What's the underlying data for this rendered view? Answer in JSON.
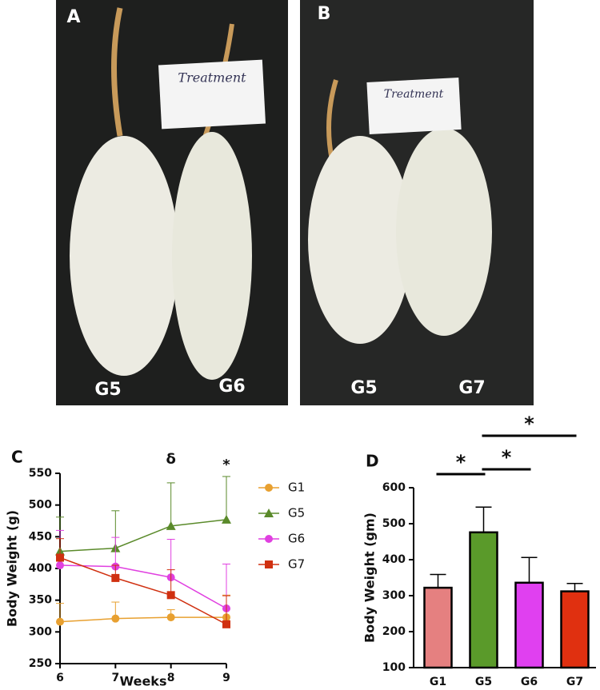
{
  "photos": [
    {
      "panel": "A",
      "labels": [
        "G5",
        "G6"
      ],
      "card": "Treatment"
    },
    {
      "panel": "B",
      "labels": [
        "G5",
        "G7"
      ],
      "card": "Treatment"
    }
  ],
  "chart_data": [
    {
      "type": "line",
      "panel": "C",
      "xlabel": "Weeks",
      "ylabel": "Body Weight (g)",
      "x": [
        6,
        7,
        8,
        9
      ],
      "xlim": [
        6,
        9
      ],
      "xticks": [
        6,
        7,
        8,
        9
      ],
      "ylim": [
        250,
        550
      ],
      "yticks": [
        250,
        300,
        350,
        400,
        450,
        500,
        550
      ],
      "series": [
        {
          "name": "G1",
          "color": "#e8a030",
          "marker": "circle",
          "values": [
            316,
            321,
            323,
            323
          ],
          "errors": [
            29,
            26,
            12,
            35
          ]
        },
        {
          "name": "G5",
          "color": "#5a8a2a",
          "marker": "triangle",
          "values": [
            427,
            432,
            467,
            477
          ],
          "errors": [
            54,
            59,
            68,
            68
          ]
        },
        {
          "name": "G6",
          "color": "#e040e0",
          "marker": "circle",
          "values": [
            405,
            403,
            386,
            337
          ],
          "errors": [
            55,
            46,
            60,
            70
          ]
        },
        {
          "name": "G7",
          "color": "#d03010",
          "marker": "square",
          "values": [
            417,
            385,
            358,
            312
          ],
          "errors": [
            30,
            20,
            40,
            45
          ]
        }
      ],
      "annotations": [
        {
          "text": "δ",
          "x": 8
        },
        {
          "text": "*",
          "x": 9
        }
      ]
    },
    {
      "type": "bar",
      "panel": "D",
      "ylabel": "Body Weight (gm)",
      "categories": [
        "G1",
        "G5",
        "G6",
        "G7"
      ],
      "values": [
        322,
        476,
        336,
        312
      ],
      "errors": [
        37,
        70,
        70,
        22
      ],
      "colors": [
        "#e58080",
        "#5a9a2a",
        "#e040f0",
        "#e03010"
      ],
      "ylim": [
        100,
        600
      ],
      "yticks": [
        100,
        200,
        300,
        400,
        500,
        600
      ],
      "significance": [
        {
          "from": 0,
          "to": 1,
          "label": "*"
        },
        {
          "from": 1,
          "to": 2,
          "label": "*"
        },
        {
          "from": 1,
          "to": 3,
          "label": "*"
        }
      ]
    }
  ]
}
